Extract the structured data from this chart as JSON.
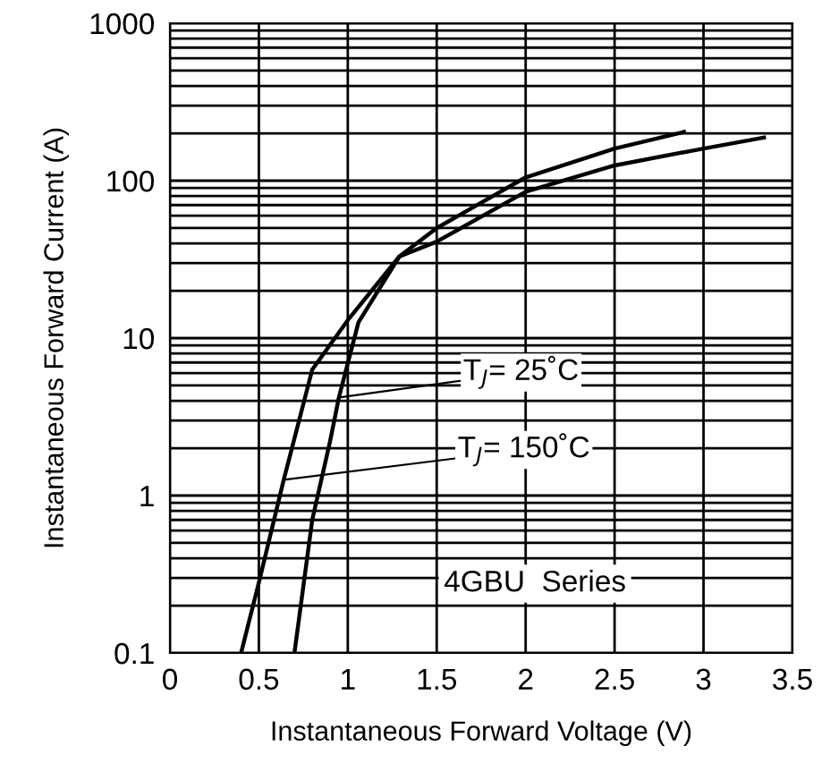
{
  "chart_data": {
    "type": "line",
    "xlabel": "Instantaneous Forward Voltage (V)",
    "ylabel": "Instantaneous Forward Current (A)",
    "log": "y",
    "grid": true,
    "xlim": [
      0,
      3.5
    ],
    "ylim": [
      0.1,
      1000
    ],
    "xticks": [
      0,
      0.5,
      1,
      1.5,
      2,
      2.5,
      3,
      3.5
    ],
    "yticks": [
      0.1,
      1,
      10,
      100,
      1000
    ],
    "series": [
      {
        "color": "#000000",
        "x": [
          0.4,
          0.5,
          0.64,
          0.8,
          1.0,
          1.29,
          1.5,
          2.0,
          2.5,
          2.89
        ],
        "values": [
          0.1,
          0.28,
          1.26,
          6.3,
          13,
          33,
          50,
          105,
          160,
          204
        ]
      },
      {
        "color": "#000000",
        "x": [
          0.7,
          0.8,
          0.9,
          0.95,
          1.06,
          1.29,
          1.5,
          2.0,
          2.5,
          3.0,
          3.34
        ],
        "values": [
          0.1,
          0.7,
          2.2,
          4.2,
          12.6,
          33,
          41,
          85,
          125,
          160,
          188
        ]
      }
    ],
    "annotations": [
      {
        "text": "T$_{J}$= 25˚C",
        "x": 0.95,
        "y": 4.2
      },
      {
        "text": "T$_{J}$= 150˚C",
        "x": 0.64,
        "y": 1.26
      },
      "4GBU  Series"
    ]
  }
}
